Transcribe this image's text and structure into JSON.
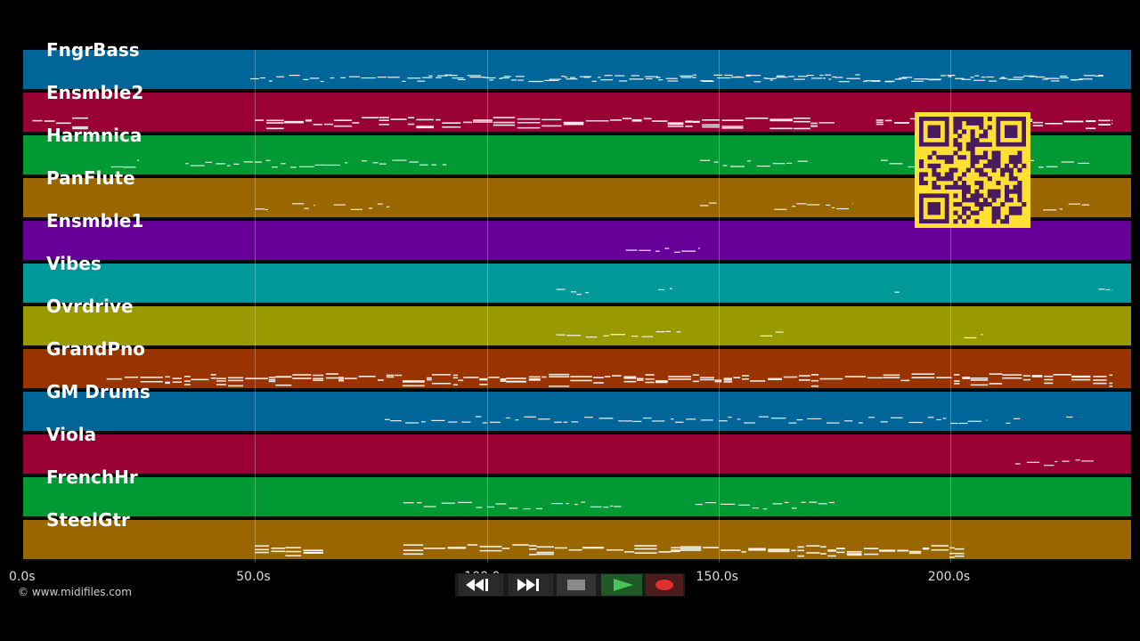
{
  "tracks": [
    {
      "name": "FngrBass",
      "color": "#006699"
    },
    {
      "name": "Ensmble2",
      "color": "#990033"
    },
    {
      "name": "Harmnica",
      "color": "#009933"
    },
    {
      "name": "PanFlute",
      "color": "#996600"
    },
    {
      "name": "Ensmble1",
      "color": "#660099"
    },
    {
      "name": "Vibes",
      "color": "#009999"
    },
    {
      "name": "Ovrdrive",
      "color": "#999900"
    },
    {
      "name": "GrandPno",
      "color": "#993300"
    },
    {
      "name": "GM Drums",
      "color": "#006699"
    },
    {
      "name": "Viola",
      "color": "#990033"
    },
    {
      "name": "FrenchHr",
      "color": "#009933"
    },
    {
      "name": "SteelGtr",
      "color": "#996600"
    }
  ],
  "timeline": {
    "max_seconds": 239,
    "ticks": [
      {
        "seconds": 0,
        "label": "0.0s"
      },
      {
        "seconds": 50,
        "label": "50.0s"
      },
      {
        "seconds": 100,
        "label": "100.0s"
      },
      {
        "seconds": 150,
        "label": "150.0s"
      },
      {
        "seconds": 200,
        "label": "200.0s"
      }
    ]
  },
  "note_segments": [
    [
      [
        49,
        233
      ],
      [
        85,
        233
      ]
    ],
    [
      [
        2,
        14
      ],
      [
        50,
        175
      ],
      [
        184,
        235
      ]
    ],
    [
      [
        19,
        25
      ],
      [
        35,
        70
      ],
      [
        73,
        92
      ],
      [
        146,
        170
      ],
      [
        185,
        230
      ]
    ],
    [
      [
        50,
        53
      ],
      [
        58,
        63
      ],
      [
        67,
        79
      ],
      [
        146,
        150
      ],
      [
        162,
        179
      ],
      [
        220,
        230
      ]
    ],
    [
      [
        130,
        146
      ]
    ],
    [
      [
        115,
        122
      ],
      [
        137,
        140
      ],
      [
        188,
        190
      ],
      [
        232,
        235
      ]
    ],
    [
      [
        115,
        142
      ],
      [
        159,
        164
      ],
      [
        203,
        207
      ]
    ],
    [
      [
        18,
        235
      ]
    ],
    [
      [
        78,
        208
      ],
      [
        212,
        215
      ],
      [
        225,
        227
      ]
    ],
    [
      [
        214,
        231
      ]
    ],
    [
      [
        82,
        112
      ],
      [
        114,
        129
      ],
      [
        145,
        175
      ]
    ],
    [
      [
        50,
        65
      ],
      [
        82,
        203
      ]
    ]
  ],
  "controls": {
    "rewind": "rewind-icon",
    "fast_forward": "fast-forward-icon",
    "stop": "stop-icon",
    "play": "play-icon",
    "record": "record-icon"
  },
  "qr_code": "qr-code",
  "copyright": "© www.midifiles.com"
}
